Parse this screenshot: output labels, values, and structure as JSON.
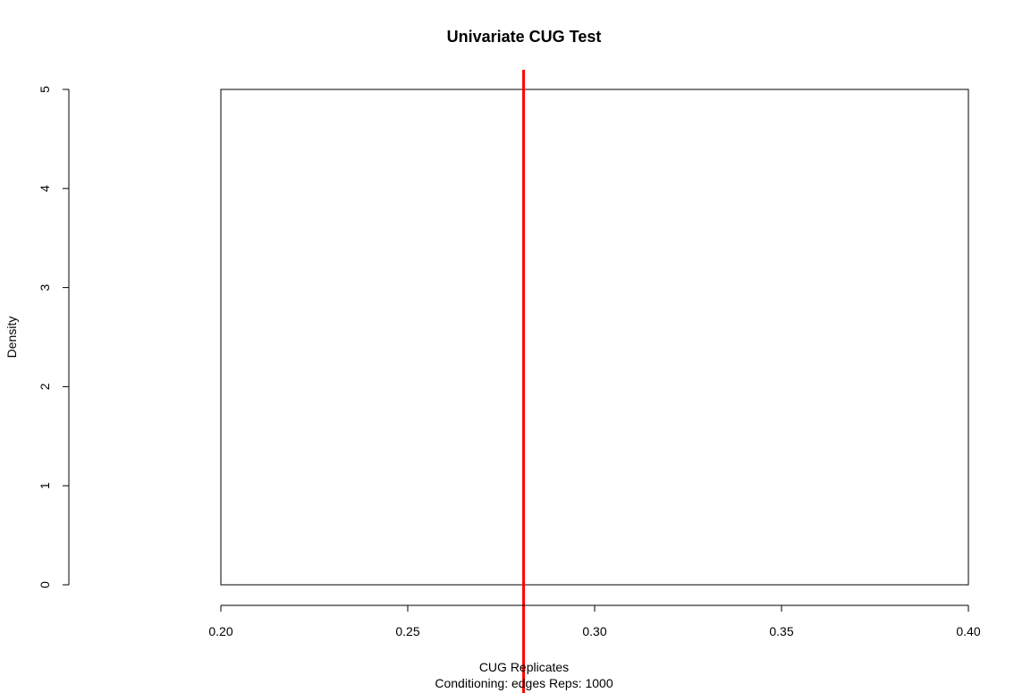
{
  "chart_data": {
    "type": "histogram",
    "title": "Univariate CUG Test",
    "xlabel": "CUG Replicates",
    "subtitle": "Conditioning: edges Reps: 1000",
    "ylabel": "Density",
    "xlim": [
      0.2,
      0.4
    ],
    "ylim": [
      0,
      5
    ],
    "x_ticks": [
      0.2,
      0.25,
      0.3,
      0.35,
      0.4
    ],
    "x_tick_labels": [
      "0.20",
      "0.25",
      "0.30",
      "0.35",
      "0.40"
    ],
    "y_ticks": [
      0,
      1,
      2,
      3,
      4,
      5
    ],
    "y_tick_labels": [
      "0",
      "1",
      "2",
      "3",
      "4",
      "5"
    ],
    "bars": [
      {
        "x0": 0.2,
        "x1": 0.4,
        "density": 5
      }
    ],
    "observed_line": {
      "x": 0.281,
      "color": "#ff0000"
    },
    "bar_fill": "#ffffff",
    "bar_stroke": "#000000"
  }
}
